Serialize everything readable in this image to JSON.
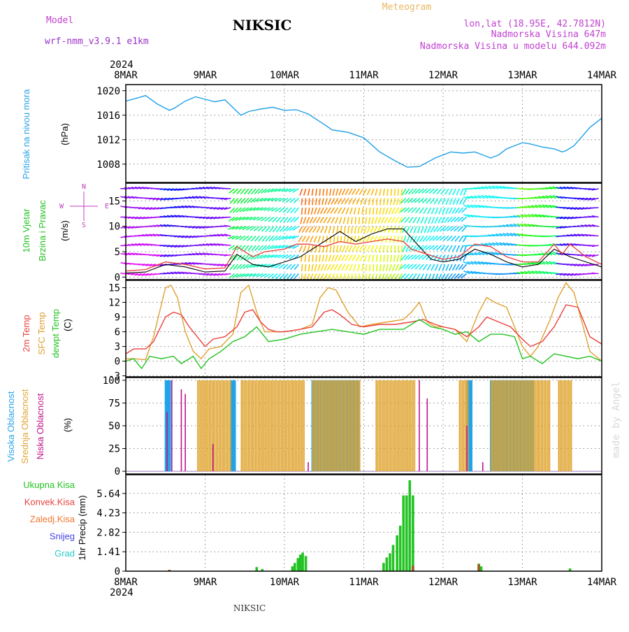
{
  "header": {
    "title": "NIKSIC",
    "model_label": "Model",
    "model_name": "wrf-nmm_v3.9.1  e1km",
    "meteogram_label": "Meteogram",
    "lonlat": "lon,lat (18.95E, 42.7812N)",
    "elevation": "Nadmorska Visina 647m",
    "model_elevation": "Nadmorska Visina u modelu 644.092m",
    "footer_station": "NIKSIC",
    "watermark": "made by Angel"
  },
  "x_axis": {
    "year": "2024",
    "labels": [
      "8MAR",
      "9MAR",
      "10MAR",
      "11MAR",
      "12MAR",
      "13MAR",
      "14MAR"
    ],
    "range_days": [
      0,
      6
    ]
  },
  "colors": {
    "pressure": "#1fa0e6",
    "t2m": "#e8413c",
    "sfc": "#e0a030",
    "dewpt": "#22c322",
    "high_cloud": "#22a3e8",
    "mid_cloud": "#e0a532",
    "low_cloud": "#c0148a",
    "total_precip": "#22c322",
    "conv_precip": "#e8413c",
    "freezing": "#f07830",
    "snow": "#4646e6",
    "hail": "#2cc8c8",
    "wind_mean": "#e8413c",
    "wind_gust": "#000000",
    "wind_axis_label": "#c040c0"
  },
  "panels": {
    "pressure": {
      "label_main": "Pritisak na nivou mora",
      "unit": "(hPa)",
      "ticks": [
        "1020",
        "1016",
        "1012",
        "1008"
      ],
      "ylim": [
        1005,
        1021
      ]
    },
    "wind": {
      "label_1": "10m Vjetar",
      "label_2": "Brzina i Pravac",
      "unit": "(m/s)",
      "ticks": [
        "15",
        "10",
        "5",
        "0"
      ],
      "ylim": [
        -0.5,
        18.5
      ],
      "compass": {
        "n": "N",
        "s": "S",
        "w": "W",
        "e": "E"
      }
    },
    "temperature": {
      "label_t2m": "2m Temp",
      "label_sfc": "SFC Temp",
      "label_dew": "dewpt Temp",
      "unit": "(C)",
      "ticks": [
        "15",
        "12",
        "9",
        "6",
        "3",
        "0",
        "-3"
      ],
      "ylim": [
        -3.2,
        16.5
      ]
    },
    "cloud": {
      "label_high": "Visoka Oblacnost",
      "label_mid": "Srednja Oblacnost",
      "label_low": "Niska Oblacnost",
      "unit": "(%)",
      "ticks": [
        "100",
        "75",
        "50",
        "25",
        "0"
      ],
      "ylim": [
        -3,
        103
      ]
    },
    "precip": {
      "legend": [
        "Ukupna Kisa",
        "Konvek.Kisa",
        "Zaledj.Kisa",
        "Snijeg",
        "Grad"
      ],
      "ylabel": "1hr Precip (mm)",
      "ticks": [
        "5.64",
        "4.23",
        "2.82",
        "1.41",
        "0"
      ],
      "ylim": [
        0,
        7.0
      ]
    }
  },
  "chart_data": [
    {
      "type": "line",
      "title": "Pritisak na nivou mora",
      "ylabel": "(hPa)",
      "x_unit": "days since 8MAR 00Z",
      "series": [
        {
          "name": "Pritisak na nivou mora",
          "x": [
            0,
            0.12,
            0.25,
            0.4,
            0.55,
            0.62,
            0.75,
            0.88,
            1.0,
            1.12,
            1.25,
            1.33,
            1.45,
            1.55,
            1.7,
            1.85,
            2.0,
            2.15,
            2.3,
            2.5,
            2.6,
            2.8,
            3.0,
            3.2,
            3.4,
            3.55,
            3.7,
            3.9,
            4.1,
            4.25,
            4.4,
            4.5,
            4.6,
            4.7,
            4.8,
            4.9,
            5.0,
            5.1,
            5.25,
            5.4,
            5.5,
            5.55,
            5.65,
            5.75,
            5.85,
            6.0
          ],
          "values": [
            1018.3,
            1018.7,
            1019.2,
            1017.8,
            1016.8,
            1017.2,
            1018.3,
            1019.0,
            1018.6,
            1018.2,
            1018.5,
            1017.5,
            1016.0,
            1016.6,
            1017.0,
            1017.3,
            1016.8,
            1016.9,
            1016.2,
            1014.5,
            1013.6,
            1013.2,
            1012.3,
            1010.0,
            1008.5,
            1007.5,
            1007.6,
            1009.0,
            1010.0,
            1009.8,
            1010.0,
            1009.5,
            1009.0,
            1009.5,
            1010.5,
            1011.0,
            1011.5,
            1011.3,
            1010.8,
            1010.5,
            1010.0,
            1010.2,
            1011.0,
            1012.5,
            1014.0,
            1015.5
          ]
        }
      ]
    },
    {
      "type": "line",
      "title": "10m Vjetar Brzina i Pravac",
      "ylabel": "(m/s)",
      "x_unit": "days since 8MAR 00Z",
      "series": [
        {
          "name": "mean",
          "x": [
            0,
            0.25,
            0.5,
            0.75,
            1.0,
            1.25,
            1.4,
            1.6,
            1.75,
            2.0,
            2.15,
            2.3,
            2.5,
            2.7,
            2.9,
            3.1,
            3.3,
            3.5,
            3.6,
            3.8,
            4.0,
            4.2,
            4.4,
            4.6,
            4.8,
            5.0,
            5.2,
            5.4,
            5.5,
            5.6,
            5.8,
            6.0
          ],
          "values": [
            1.2,
            1.5,
            3.0,
            2.5,
            1.6,
            1.8,
            6.0,
            4.0,
            5.0,
            5.5,
            6.5,
            6.5,
            6.0,
            7.0,
            6.5,
            7.0,
            7.5,
            7.0,
            5.5,
            4.5,
            3.5,
            4.0,
            6.5,
            6.0,
            4.0,
            3.0,
            3.0,
            6.5,
            4.5,
            6.5,
            4.0,
            2.5
          ]
        },
        {
          "name": "gust",
          "x": [
            0,
            0.25,
            0.5,
            0.75,
            1.0,
            1.25,
            1.4,
            1.6,
            1.8,
            2.0,
            2.2,
            2.5,
            2.7,
            2.9,
            3.1,
            3.3,
            3.5,
            3.7,
            3.85,
            4.0,
            4.2,
            4.4,
            4.6,
            4.8,
            5.0,
            5.2,
            5.4,
            5.6,
            5.8,
            6.0
          ],
          "values": [
            0.8,
            1.0,
            2.5,
            2.0,
            1.0,
            1.2,
            4.5,
            2.5,
            2.0,
            3.0,
            4.0,
            7.0,
            9.0,
            7.0,
            8.5,
            9.5,
            9.5,
            6.0,
            3.5,
            3.0,
            3.5,
            5.5,
            4.5,
            3.0,
            2.0,
            2.5,
            5.5,
            4.0,
            3.0,
            2.0
          ]
        }
      ]
    },
    {
      "type": "line",
      "title": "2m Temp / SFC Temp / dewpt Temp",
      "ylabel": "(C)",
      "x_unit": "days since 8MAR 00Z",
      "series": [
        {
          "name": "2m Temp",
          "x": [
            0,
            0.1,
            0.25,
            0.35,
            0.5,
            0.6,
            0.7,
            0.8,
            0.9,
            1.0,
            1.1,
            1.25,
            1.4,
            1.5,
            1.6,
            1.7,
            1.8,
            1.9,
            2.0,
            2.2,
            2.35,
            2.5,
            2.6,
            2.7,
            2.85,
            3.0,
            3.2,
            3.4,
            3.6,
            3.75,
            3.9,
            4.0,
            4.15,
            4.3,
            4.45,
            4.55,
            4.7,
            4.85,
            5.0,
            5.1,
            5.25,
            5.4,
            5.55,
            5.7,
            5.85,
            6.0
          ],
          "values": [
            1.5,
            2.5,
            2.5,
            4.0,
            9.0,
            10.0,
            9.5,
            7.0,
            5.0,
            3.0,
            4.5,
            5.0,
            7.0,
            10.0,
            10.5,
            8.0,
            6.5,
            6.0,
            6.0,
            6.5,
            7.0,
            10.0,
            10.5,
            9.5,
            7.5,
            7.0,
            7.5,
            7.5,
            8.0,
            8.5,
            7.5,
            7.0,
            6.5,
            5.0,
            7.0,
            9.0,
            8.0,
            7.0,
            4.5,
            3.0,
            4.0,
            7.0,
            11.5,
            11.0,
            5.0,
            3.5
          ]
        },
        {
          "name": "SFC Temp",
          "x": [
            0,
            0.1,
            0.25,
            0.35,
            0.5,
            0.57,
            0.65,
            0.75,
            0.85,
            0.95,
            1.05,
            1.2,
            1.35,
            1.45,
            1.55,
            1.65,
            1.75,
            1.9,
            2.0,
            2.2,
            2.35,
            2.45,
            2.55,
            2.65,
            2.8,
            2.95,
            3.1,
            3.3,
            3.5,
            3.6,
            3.7,
            3.8,
            3.9,
            4.0,
            4.15,
            4.3,
            4.45,
            4.55,
            4.65,
            4.8,
            4.9,
            5.0,
            5.1,
            5.2,
            5.35,
            5.45,
            5.55,
            5.65,
            5.75,
            5.85,
            6.0
          ],
          "values": [
            0.5,
            0.5,
            0.3,
            5.0,
            15.0,
            15.5,
            13.0,
            6.0,
            2.0,
            0.5,
            2.5,
            3.0,
            5.5,
            14.0,
            15.5,
            10.0,
            6.0,
            6.0,
            6.0,
            6.5,
            7.5,
            13.0,
            15.0,
            14.5,
            10.0,
            7.0,
            7.5,
            8.0,
            8.5,
            10.0,
            12.0,
            8.0,
            7.0,
            7.0,
            6.5,
            4.0,
            10.0,
            13.0,
            12.0,
            11.0,
            7.0,
            3.0,
            1.0,
            3.0,
            8.5,
            13.0,
            16.0,
            14.0,
            8.0,
            2.0,
            0.0
          ]
        },
        {
          "name": "dewpt Temp",
          "x": [
            0,
            0.1,
            0.2,
            0.3,
            0.45,
            0.6,
            0.7,
            0.85,
            0.95,
            1.05,
            1.2,
            1.35,
            1.5,
            1.65,
            1.8,
            2.0,
            2.2,
            2.4,
            2.6,
            2.8,
            3.0,
            3.2,
            3.5,
            3.7,
            3.85,
            4.0,
            4.15,
            4.3,
            4.45,
            4.6,
            4.75,
            4.9,
            5.0,
            5.1,
            5.25,
            5.4,
            5.55,
            5.7,
            5.85,
            6.0
          ],
          "values": [
            0,
            0.5,
            -1.5,
            1.0,
            0.5,
            1.0,
            -0.5,
            1.0,
            -1.5,
            0.5,
            2.0,
            4.0,
            5.0,
            7.0,
            4.0,
            4.5,
            5.5,
            6.0,
            6.5,
            6.0,
            5.5,
            6.5,
            6.5,
            8.5,
            7.0,
            6.5,
            5.5,
            6.0,
            4.0,
            5.5,
            5.5,
            5.0,
            0.5,
            1.0,
            -0.5,
            1.5,
            1.0,
            0.5,
            1.0,
            0.0
          ]
        }
      ]
    },
    {
      "type": "bar",
      "title": "Visoka / Srednja / Niska Oblacnost",
      "ylabel": "(%)",
      "x_unit": "days since 8MAR 00Z",
      "series": [
        {
          "name": "Visoka Oblacnost",
          "ranges": [
            [
              0.5,
              0.57
            ],
            [
              1.33,
              1.38
            ],
            [
              2.35,
              2.95
            ],
            [
              4.3,
              4.36
            ],
            [
              4.6,
              5.15
            ]
          ],
          "values": [
            100,
            100,
            100,
            100,
            100
          ]
        },
        {
          "name": "Srednja Oblacnost",
          "ranges": [
            [
              0.9,
              1.33
            ],
            [
              1.45,
              2.25
            ],
            [
              2.35,
              2.95
            ],
            [
              3.15,
              3.65
            ],
            [
              4.2,
              4.32
            ],
            [
              4.6,
              5.35
            ],
            [
              5.45,
              5.62
            ]
          ],
          "values": [
            100,
            100,
            100,
            100,
            100,
            100,
            100
          ]
        },
        {
          "name": "Niska Oblacnost",
          "x": [
            0.52,
            0.58,
            0.7,
            0.75,
            1.1,
            2.3,
            3.7,
            3.8,
            4.3,
            4.5
          ],
          "values": [
            65,
            100,
            90,
            85,
            30,
            10,
            100,
            80,
            50,
            10
          ]
        }
      ]
    },
    {
      "type": "bar",
      "title": "1hr Precip",
      "ylabel": "1hr Precip (mm)",
      "x_unit": "days since 8MAR 00Z",
      "series": [
        {
          "name": "Ukupna Kisa",
          "x": [
            0.55,
            1.65,
            1.72,
            2.1,
            2.13,
            2.17,
            2.2,
            2.23,
            2.27,
            3.25,
            3.29,
            3.33,
            3.37,
            3.42,
            3.46,
            3.5,
            3.54,
            3.58,
            3.62,
            4.45,
            4.48,
            5.6
          ],
          "values": [
            0.1,
            0.3,
            0.15,
            0.35,
            0.6,
            0.95,
            1.2,
            1.35,
            1.1,
            0.6,
            1.0,
            1.3,
            1.9,
            2.6,
            3.3,
            5.5,
            5.5,
            6.6,
            5.5,
            0.55,
            0.35,
            0.2
          ]
        },
        {
          "name": "Konvek.Kisa",
          "x": [
            0.55,
            3.62,
            4.45
          ],
          "values": [
            0.1,
            0.4,
            0.5
          ]
        }
      ]
    }
  ]
}
